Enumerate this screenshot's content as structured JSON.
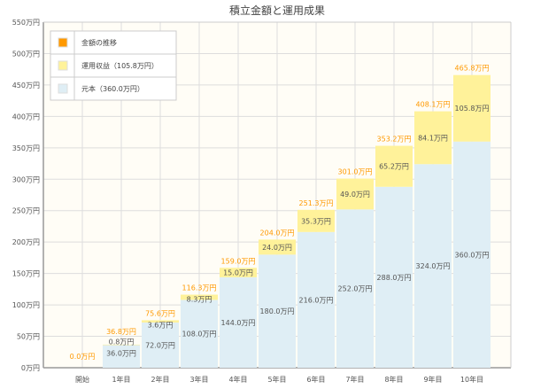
{
  "chart_data": {
    "type": "bar",
    "stacked": true,
    "title": "積立金額と運用成果",
    "categories": [
      "開始",
      "1年目",
      "2年目",
      "3年目",
      "4年目",
      "5年目",
      "6年目",
      "7年目",
      "8年目",
      "9年目",
      "10年目"
    ],
    "series": [
      {
        "name": "元本（360.0万円）",
        "color": "#dfeef5",
        "values": [
          0,
          36.0,
          72.0,
          108.0,
          144.0,
          180.0,
          216.0,
          252.0,
          288.0,
          324.0,
          360.0
        ]
      },
      {
        "name": "運用収益（105.8万円）",
        "color": "#fff29a",
        "values": [
          0,
          0.8,
          3.6,
          8.3,
          15.0,
          24.0,
          35.3,
          49.0,
          65.2,
          84.1,
          105.8
        ]
      }
    ],
    "totals": {
      "name": "金額の推移",
      "color": "#ff9900",
      "values": [
        0.0,
        36.8,
        75.6,
        116.3,
        159.0,
        204.0,
        251.3,
        301.0,
        353.2,
        408.1,
        465.8
      ]
    },
    "unit": "万円",
    "ylim": [
      0,
      550
    ],
    "yticks": [
      0,
      50,
      100,
      150,
      200,
      250,
      300,
      350,
      400,
      450,
      500,
      550
    ],
    "grid": true,
    "legend_position": "top-left",
    "plot_background": "#fffdf6"
  }
}
